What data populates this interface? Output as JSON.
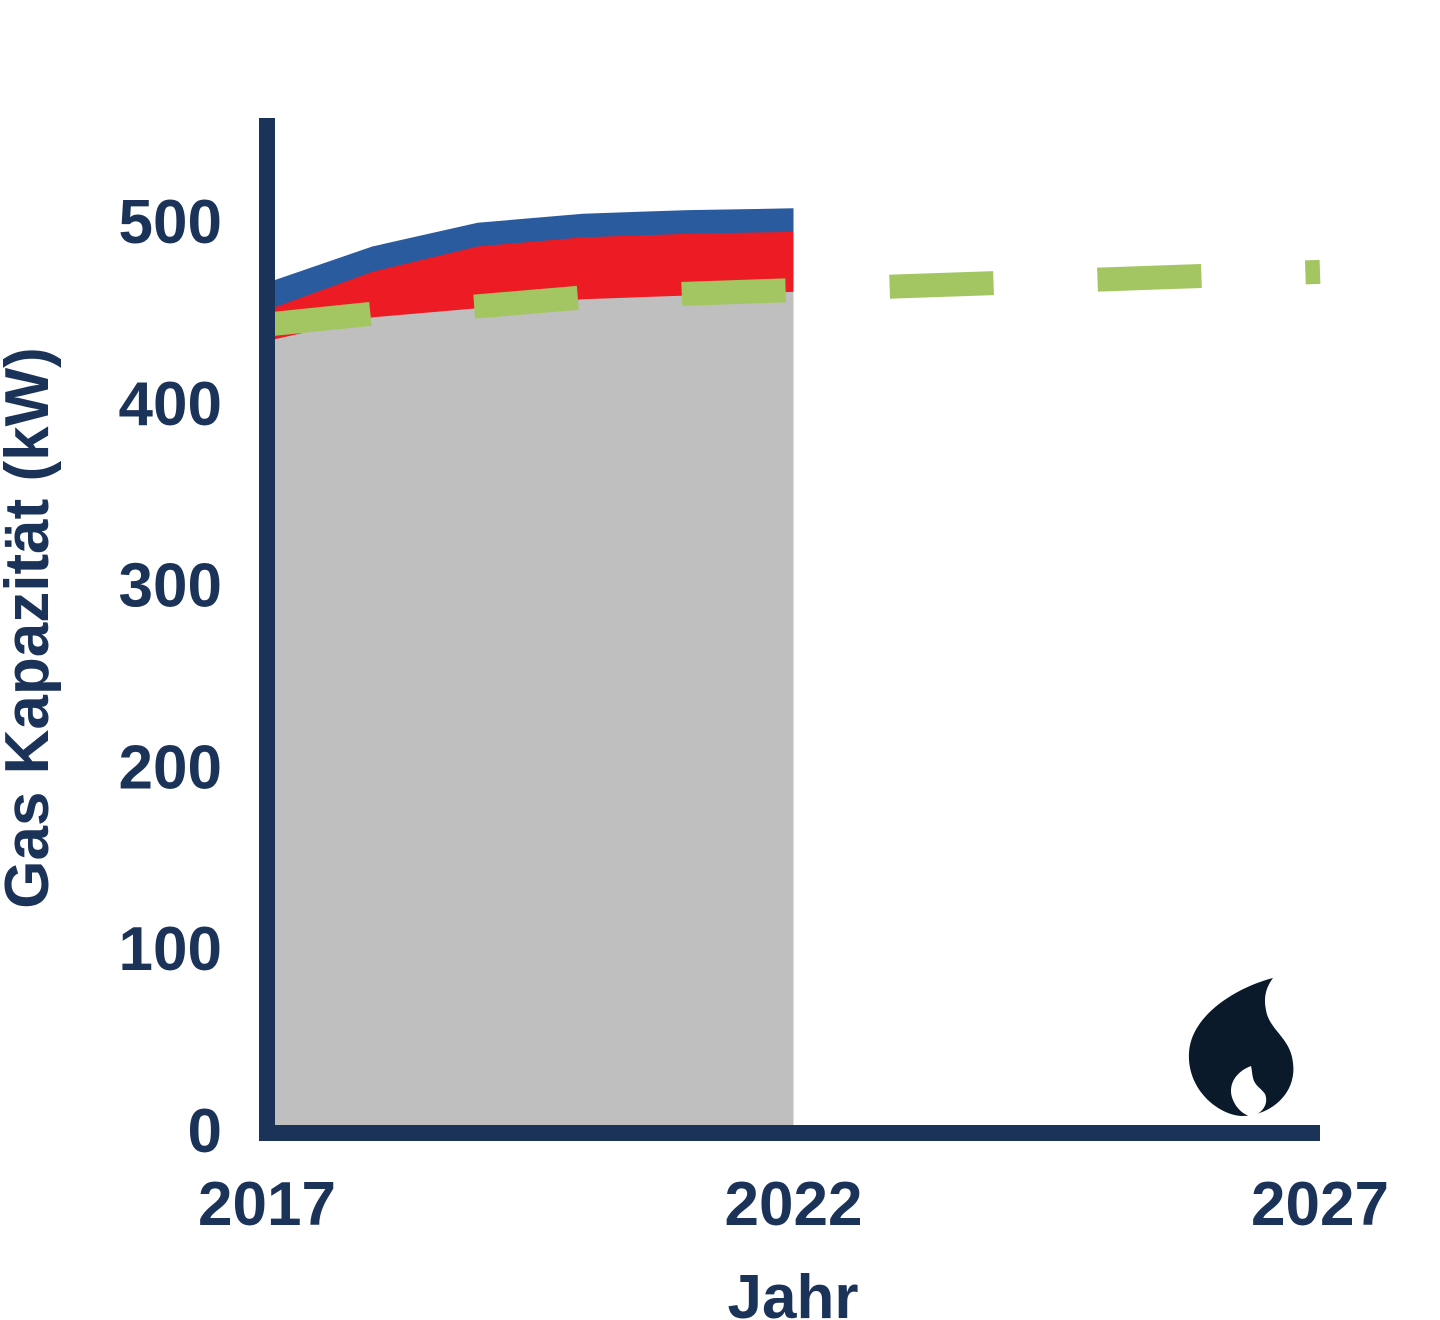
{
  "chart_data": {
    "type": "area",
    "xlabel": "Jahr",
    "ylabel": "Gas Kapazität (kW)",
    "xlim": [
      2017,
      2027
    ],
    "ylim": [
      0,
      550
    ],
    "x_ticks": [
      2017,
      2022,
      2027
    ],
    "x_tick_labels": [
      "2017",
      "2022",
      "2027"
    ],
    "y_ticks": [
      0,
      100,
      200,
      300,
      400,
      500
    ],
    "y_tick_labels": [
      "0",
      "100",
      "200",
      "300",
      "400",
      "500"
    ],
    "grid": false,
    "legend": "none",
    "stacked_series": [
      {
        "color": "#bfbfbf",
        "x": [
          2017,
          2018,
          2019,
          2020,
          2021,
          2022
        ],
        "top": [
          434,
          447,
          452,
          457,
          459,
          461
        ]
      },
      {
        "color": "#ed1c24",
        "x": [
          2017,
          2018,
          2019,
          2020,
          2021,
          2022
        ],
        "top": [
          451,
          472,
          486,
          491,
          493,
          494
        ]
      },
      {
        "color": "#2a5b9e",
        "x": [
          2017,
          2018,
          2019,
          2020,
          2021,
          2022
        ],
        "top": [
          466,
          486,
          499,
          504,
          506,
          507
        ]
      }
    ],
    "dashed_line": {
      "color": "#a4c662",
      "x": [
        2017,
        2018,
        2019,
        2020,
        2021,
        2022,
        2023,
        2024,
        2025,
        2026,
        2027
      ],
      "values": [
        443,
        449,
        453,
        458,
        460,
        462,
        464,
        466,
        468,
        470,
        472
      ]
    }
  },
  "axis_color": "#1b3358",
  "icon": "flame-icon",
  "icon_color": "#0b1a2b"
}
